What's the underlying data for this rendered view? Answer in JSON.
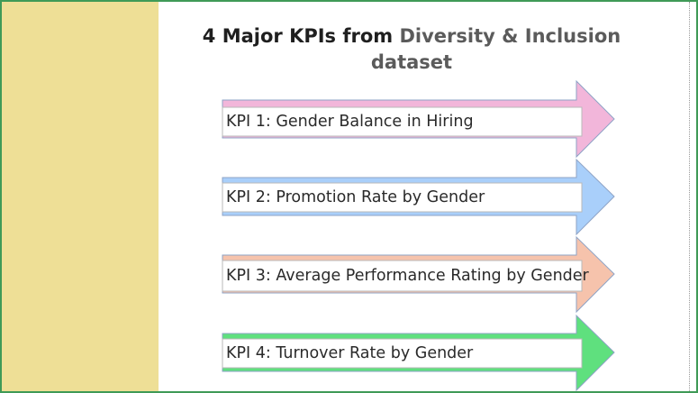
{
  "title": {
    "lead": "4 Major KPIs from ",
    "accent": "Diversity & Inclusion dataset"
  },
  "kpis": [
    {
      "label": "KPI 1: Gender Balance in Hiring",
      "color": "#f2b6da"
    },
    {
      "label": "KPI 2: Promotion Rate by Gender",
      "color": "#a9cffa"
    },
    {
      "label": "KPI 3: Average Performance Rating by Gender",
      "color": "#f6c3ac"
    },
    {
      "label": "KPI 4: Turnover Rate by Gender",
      "color": "#5fe07e"
    }
  ],
  "colors": {
    "frame_border": "#3f9a57",
    "left_band": "#eedf96"
  }
}
